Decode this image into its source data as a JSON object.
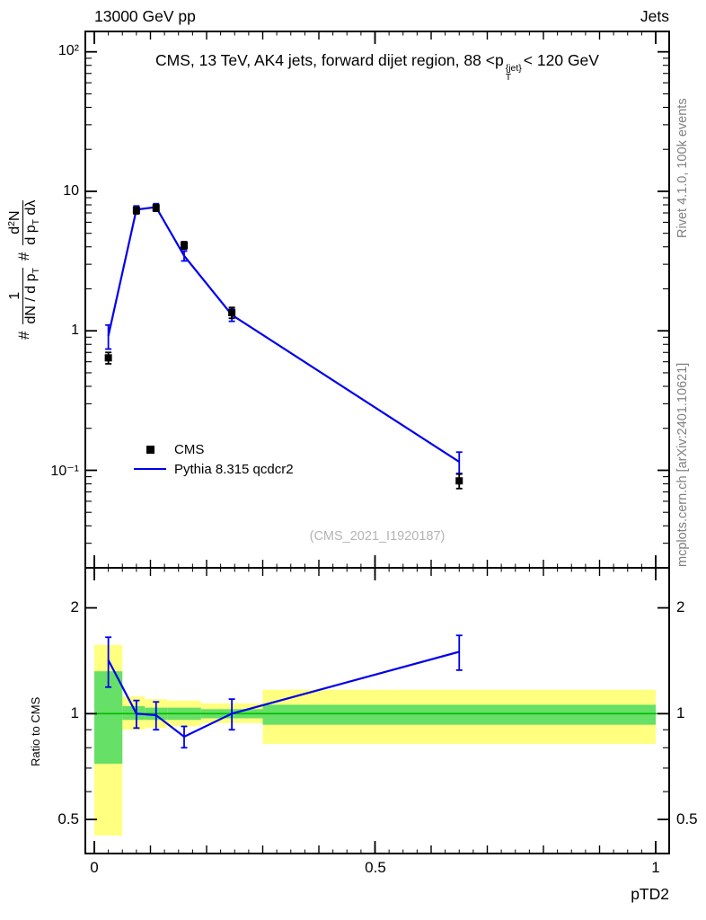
{
  "colors": {
    "line": "#0000ee",
    "cms_marker": "#000000",
    "band_yellow": "#ffff80",
    "band_green": "#66e066",
    "ref_line_green": "#00bb00",
    "frame": "#000000",
    "side_text": "#808080",
    "watermark": "#b4b4b4"
  },
  "header": {
    "left": "13000 GeV pp",
    "right": "Jets"
  },
  "title": {
    "text_a": "CMS, 13 TeV, AK4 jets, forward dijet region, 88 <p",
    "sup": "{jet}",
    "sub": "T",
    "text_b": "< 120 GeV"
  },
  "ylabel": {
    "hash1": "#",
    "frac1_num": "1",
    "frac1_den_a": "dN / d p",
    "frac1_den_sub": "T",
    "hash2": "#",
    "frac2_num_a": "d",
    "frac2_num_sup": "2",
    "frac2_num_b": "N",
    "frac2_den_a": "d p",
    "frac2_den_sub": "T",
    "frac2_den_b": " dλ"
  },
  "side_notes": {
    "top": "Rivet 4.1.0, 100k events",
    "bottom": "mcplots.cern.ch [arXiv:2401.10621]"
  },
  "watermark": "(CMS_2021_I1920187)",
  "legend": [
    {
      "label": "CMS",
      "marker": "square"
    },
    {
      "label": "Pythia 8.315 qcdcr2",
      "marker": "line"
    }
  ],
  "ratio_ylabel": "Ratio to CMS",
  "xlabel": "pTD2",
  "chart_data": {
    "type": "line",
    "title": "CMS, 13 TeV, AK4 jets, forward dijet region, 88 < pT{jet} < 120 GeV",
    "x_axis": {
      "min": -0.016,
      "max": 1.024,
      "major_ticks": [
        {
          "v": 0,
          "label": "0"
        },
        {
          "v": 0.5,
          "label": "0.5"
        },
        {
          "v": 1,
          "label": "1"
        }
      ],
      "medium_step": 0.1,
      "minor_step": 0.025
    },
    "main_y_axis": {
      "scale": "log",
      "min": 0.02,
      "max": 140,
      "major_ticks": [
        {
          "v": 100,
          "label": "10²"
        },
        {
          "v": 10,
          "label": "10"
        },
        {
          "v": 1,
          "label": "1"
        },
        {
          "v": 0.1,
          "label": "10⁻¹"
        }
      ]
    },
    "ratio_y_axis": {
      "scale": "log",
      "min": 0.4,
      "max": 2.6,
      "major_ticks": [
        {
          "v": 2,
          "label": "2"
        },
        {
          "v": 1,
          "label": "1"
        },
        {
          "v": 0.5,
          "label": "0.5"
        }
      ],
      "minor_ticks": [
        0.4,
        0.6,
        0.7,
        0.8,
        0.9
      ]
    },
    "x": [
      0.025,
      0.075,
      0.11,
      0.16,
      0.245,
      0.65
    ],
    "series": [
      {
        "name": "CMS",
        "type": "points",
        "values": [
          0.64,
          7.3,
          7.6,
          4.1,
          1.35,
          0.084
        ],
        "errors": [
          0.06,
          0.4,
          0.4,
          0.25,
          0.12,
          0.01
        ]
      },
      {
        "name": "Pythia 8.315 qcdcr2",
        "type": "line",
        "values": [
          0.92,
          7.4,
          7.7,
          3.45,
          1.3,
          0.115
        ],
        "errors": [
          0.18,
          0.45,
          0.45,
          0.28,
          0.13,
          0.02
        ]
      }
    ],
    "ratio": {
      "ref_line": 1.0,
      "points": {
        "x": [
          0.025,
          0.075,
          0.11,
          0.16,
          0.245,
          0.65
        ],
        "values": [
          1.42,
          1.0,
          0.99,
          0.86,
          1.0,
          1.5
        ],
        "errors": [
          0.23,
          0.09,
          0.09,
          0.06,
          0.1,
          0.17
        ]
      },
      "bands": [
        {
          "x0": 0.0,
          "x1": 0.05,
          "yellow": [
            0.45,
            1.57
          ],
          "green": [
            0.72,
            1.32
          ]
        },
        {
          "x0": 0.05,
          "x1": 0.09,
          "yellow": [
            0.9,
            1.12
          ],
          "green": [
            0.96,
            1.05
          ]
        },
        {
          "x0": 0.09,
          "x1": 0.13,
          "yellow": [
            0.91,
            1.1
          ],
          "green": [
            0.96,
            1.04
          ]
        },
        {
          "x0": 0.13,
          "x1": 0.19,
          "yellow": [
            0.92,
            1.09
          ],
          "green": [
            0.96,
            1.04
          ]
        },
        {
          "x0": 0.19,
          "x1": 0.3,
          "yellow": [
            0.94,
            1.07
          ],
          "green": [
            0.97,
            1.03
          ]
        },
        {
          "x0": 0.3,
          "x1": 1.0,
          "yellow": [
            0.82,
            1.17
          ],
          "green": [
            0.93,
            1.06
          ]
        }
      ]
    }
  }
}
